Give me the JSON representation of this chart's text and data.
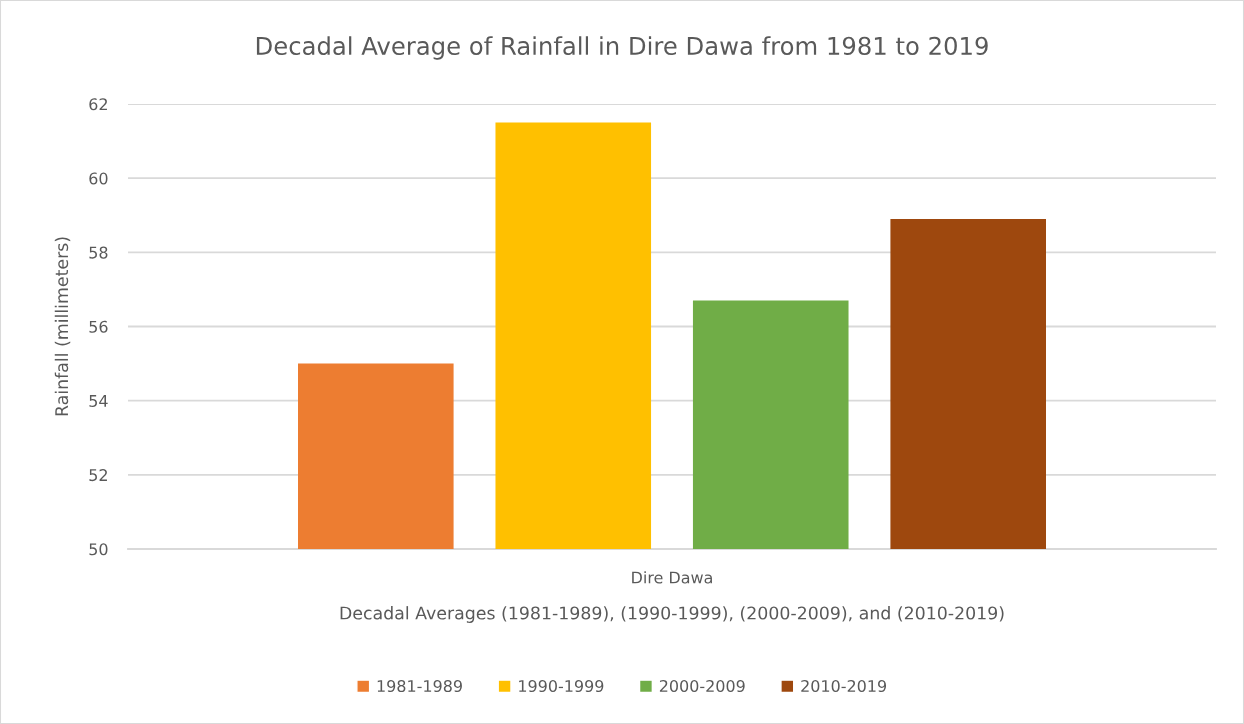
{
  "chart_data": {
    "type": "bar",
    "title": "Decadal Average of Rainfall in Dire Dawa from 1981 to 2019",
    "xlabel": "Decadal Averages (1981-1989), (1990-1999), (2000-2009), and (2010-2019)",
    "ylabel": "Rainfall (millimeters)",
    "categories": [
      "Dire Dawa"
    ],
    "series": [
      {
        "name": "1981-1989",
        "color": "#ed7d31",
        "values": [
          55.0
        ]
      },
      {
        "name": "1990-1999",
        "color": "#ffc000",
        "values": [
          61.5
        ]
      },
      {
        "name": "2000-2009",
        "color": "#70ad47",
        "values": [
          56.7
        ]
      },
      {
        "name": "2010-2019",
        "color": "#9e480e",
        "values": [
          58.9
        ]
      }
    ],
    "ylim": [
      50,
      62
    ],
    "yticks": [
      50,
      52,
      54,
      56,
      58,
      60,
      62
    ],
    "grid": "y",
    "legend": "bottom"
  }
}
